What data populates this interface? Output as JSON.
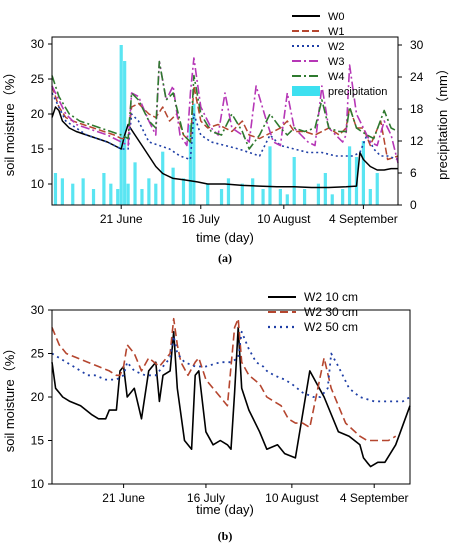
{
  "chart_data": [
    {
      "type": "line",
      "panel_label": "(a)",
      "xlabel": "time (day)",
      "ylabel": "soil moisture（%）",
      "y2label": "precipitation（mm）",
      "xlim": [
        0,
        100
      ],
      "ylim": [
        7,
        31
      ],
      "y2lim": [
        0,
        31.5
      ],
      "yticks": [
        "10",
        "15",
        "20",
        "25",
        "30"
      ],
      "y2ticks": [
        "0",
        "6",
        "12",
        "18",
        "24",
        "30"
      ],
      "xtick_labels": [
        {
          "label": "21 June",
          "x": 20
        },
        {
          "label": "16 July",
          "x": 43
        },
        {
          "label": "10 August",
          "x": 67
        },
        {
          "label": "4 September",
          "x": 90
        }
      ],
      "legend_position": "top-right",
      "series": [
        {
          "name": "W0",
          "color": "#000000",
          "dash": "",
          "width": 1.5,
          "x": [
            0,
            1,
            2,
            3,
            5,
            7,
            10,
            13,
            16,
            18,
            20,
            21,
            22,
            24,
            26,
            28,
            30,
            32,
            35,
            38,
            42,
            45,
            50,
            55,
            60,
            65,
            70,
            75,
            80,
            85,
            88,
            89,
            90,
            92,
            94,
            96,
            98,
            100
          ],
          "y": [
            19.5,
            21.0,
            20.5,
            19.0,
            18.0,
            17.5,
            17.0,
            16.5,
            16.0,
            15.5,
            15.0,
            17.0,
            18.5,
            17.0,
            15.5,
            14.0,
            12.5,
            11.5,
            10.8,
            10.6,
            10.3,
            10.0,
            10.0,
            9.8,
            9.7,
            9.6,
            9.6,
            9.5,
            9.5,
            9.6,
            9.7,
            14.5,
            13.5,
            12.5,
            12.0,
            12.0,
            12.2,
            12.2
          ]
        },
        {
          "name": "W1",
          "color": "#b5462f",
          "dash": "7 3",
          "width": 1.5,
          "x": [
            0,
            2,
            4,
            6,
            9,
            12,
            15,
            18,
            20,
            22,
            23,
            25,
            28,
            30,
            32,
            34,
            36,
            38,
            40,
            41,
            43,
            45,
            48,
            52,
            55,
            57,
            60,
            62,
            66,
            68,
            70,
            73,
            76,
            80,
            83,
            85,
            86,
            88,
            90,
            92,
            95,
            97,
            100
          ],
          "y": [
            24,
            21,
            19.5,
            19,
            18.5,
            18,
            17.5,
            17,
            16.5,
            16.5,
            21,
            21.5,
            20,
            19.5,
            21,
            19,
            20,
            17,
            16,
            24,
            19,
            18,
            18.5,
            17.5,
            19,
            17,
            16.5,
            17,
            18,
            19,
            17.5,
            17.5,
            17,
            18,
            17,
            18,
            21,
            18,
            18,
            15.5,
            19,
            13.5,
            14
          ]
        },
        {
          "name": "W2",
          "color": "#1f3fa6",
          "dash": "2 3",
          "width": 1.6,
          "x": [
            0,
            2,
            4,
            7,
            10,
            13,
            16,
            18,
            20,
            22,
            23,
            25,
            28,
            31,
            34,
            37,
            40,
            41,
            43,
            46,
            50,
            54,
            57,
            60,
            63,
            66,
            70,
            74,
            78,
            82,
            85,
            87,
            89,
            91,
            93,
            95,
            97,
            100
          ],
          "y": [
            23,
            21,
            19,
            18,
            17,
            16.5,
            16,
            15.5,
            15,
            15,
            20,
            19,
            16,
            15.5,
            15,
            14,
            13.5,
            20,
            17,
            16,
            15.5,
            15,
            14.5,
            14,
            17,
            15.5,
            15,
            14.5,
            14.5,
            14,
            14,
            14,
            14.5,
            17,
            15,
            14,
            14,
            13.5
          ]
        },
        {
          "name": "W3",
          "color": "#b637b6",
          "dash": "9 3 2 3",
          "width": 1.6,
          "x": [
            0,
            2,
            4,
            7,
            10,
            13,
            16,
            18,
            20,
            22,
            23,
            25,
            28,
            30,
            31,
            33,
            35,
            37,
            39,
            40,
            41,
            43,
            46,
            48,
            50,
            52,
            55,
            57,
            59,
            62,
            64,
            66,
            68,
            70,
            72,
            74,
            76,
            78,
            80,
            82,
            84,
            85,
            86,
            88,
            90,
            92,
            94,
            96,
            98,
            100
          ],
          "y": [
            24,
            22,
            20,
            18.5,
            18,
            17.5,
            17,
            16.5,
            16,
            15.5,
            23,
            22.5,
            19,
            17,
            27.5,
            22,
            24,
            17,
            15.5,
            23,
            28,
            21,
            18,
            17,
            23,
            18,
            17,
            16,
            24,
            19,
            16,
            15.5,
            23,
            18,
            17,
            16,
            15.5,
            24,
            18,
            17,
            16,
            17,
            27,
            20,
            18,
            16,
            15.5,
            19,
            17,
            13
          ]
        },
        {
          "name": "W4",
          "color": "#2f7a2f",
          "dash": "9 3 2 3",
          "width": 1.6,
          "x": [
            0,
            2,
            5,
            8,
            11,
            14,
            17,
            20,
            22,
            23,
            25,
            28,
            30,
            31,
            33,
            35,
            38,
            40,
            41,
            43,
            46,
            49,
            52,
            55,
            57,
            60,
            63,
            66,
            68,
            70,
            73,
            76,
            78,
            80,
            83,
            85,
            86,
            88,
            91,
            93,
            96,
            98,
            100
          ],
          "y": [
            25.5,
            22.5,
            20,
            19,
            18.5,
            18,
            17.5,
            17,
            16.5,
            23,
            22,
            19,
            18,
            27.5,
            22,
            23,
            17,
            16,
            25.5,
            20,
            17.5,
            17,
            20,
            17.5,
            15,
            17,
            20,
            18,
            17,
            18,
            17.5,
            18,
            22,
            18,
            17.5,
            17.5,
            21,
            18,
            17,
            16.5,
            20.5,
            18,
            17.5
          ]
        }
      ],
      "precipitation": {
        "name": "precipitation",
        "color": "#3de0f0",
        "x": [
          1,
          3,
          6,
          9,
          12,
          15,
          17,
          19,
          20,
          21,
          22,
          24,
          26,
          28,
          30,
          32,
          35,
          38,
          40,
          41,
          45,
          49,
          51,
          55,
          58,
          61,
          63,
          66,
          68,
          70,
          73,
          77,
          79,
          81,
          84,
          86,
          88,
          90,
          92,
          94
        ],
        "values": [
          6,
          5,
          4,
          5,
          3,
          6,
          4,
          3,
          30,
          27,
          4,
          8,
          3,
          5,
          4,
          10,
          7,
          5,
          15,
          19,
          4,
          3,
          5,
          4,
          5,
          3,
          11,
          3,
          2,
          9,
          3,
          4,
          6,
          2,
          3,
          11,
          9,
          12,
          3,
          6
        ]
      },
      "legend_entries": [
        "W0",
        "W1",
        "W2",
        "W3",
        "W4",
        "precipitation"
      ],
      "note_lines": []
    },
    {
      "type": "line",
      "panel_label": "(b)",
      "xlabel": "time (day)",
      "ylabel": "soil moisture（%）",
      "xlim": [
        0,
        100
      ],
      "ylim": [
        10,
        30
      ],
      "yticks": [
        "10",
        "15",
        "20",
        "25",
        "30"
      ],
      "xtick_labels": [
        {
          "label": "21 June",
          "x": 20
        },
        {
          "label": "16 July",
          "x": 43
        },
        {
          "label": "10 August",
          "x": 67
        },
        {
          "label": "4 September",
          "x": 90
        }
      ],
      "legend_position": "top-right",
      "series": [
        {
          "name": "W2 10 cm",
          "color": "#000000",
          "dash": "",
          "width": 1.6,
          "x": [
            0,
            1,
            2,
            3,
            5,
            8,
            11,
            13,
            15,
            16,
            18,
            19,
            20,
            21,
            23,
            25,
            27,
            29,
            30,
            31,
            33,
            34,
            35,
            36,
            37,
            39,
            40,
            41,
            43,
            45,
            47,
            49,
            50,
            51,
            52,
            53,
            55,
            58,
            60,
            63,
            65,
            68,
            72,
            76,
            80,
            83,
            86,
            87,
            88,
            89,
            91,
            93,
            96,
            100
          ],
          "y": [
            24,
            21,
            20.5,
            20,
            19.5,
            19,
            18,
            17.5,
            17.5,
            18.5,
            18.5,
            23,
            23.5,
            20,
            21,
            17.5,
            23,
            24,
            19.5,
            22.5,
            23,
            27.5,
            21,
            18,
            15,
            14,
            22.5,
            23,
            16,
            14.5,
            15,
            14.5,
            14,
            20.5,
            28,
            21,
            18.5,
            16,
            14,
            14.5,
            13.5,
            13,
            23,
            20,
            16,
            15.5,
            14.5,
            13,
            12.5,
            12,
            12.5,
            12.5,
            14.5,
            19
          ]
        },
        {
          "name": "W2 30 cm",
          "color": "#b5462f",
          "dash": "8 4",
          "width": 1.6,
          "x": [
            0,
            2,
            4,
            7,
            10,
            13,
            16,
            18,
            19,
            20,
            21,
            23,
            25,
            27,
            30,
            33,
            34,
            35,
            36,
            38,
            40,
            41,
            43,
            45,
            47,
            49,
            51,
            52,
            53,
            55,
            58,
            60,
            62,
            64,
            66,
            68,
            70,
            72,
            76,
            78,
            80,
            82,
            86,
            88,
            90,
            92,
            94,
            96
          ],
          "y": [
            28,
            26,
            25,
            24.5,
            24,
            23.5,
            23,
            22.5,
            22.5,
            23.5,
            26,
            25,
            23,
            24.5,
            23.5,
            25,
            29,
            26,
            24,
            22.5,
            24,
            24.5,
            22,
            21,
            20,
            19,
            28,
            29,
            24,
            22.5,
            21.5,
            20,
            19.5,
            19,
            17.5,
            17,
            17,
            16.5,
            24.5,
            21,
            19,
            17,
            15.5,
            15,
            15,
            15,
            15,
            15.5
          ]
        },
        {
          "name": "W2 50 cm",
          "color": "#1f3fa6",
          "dash": "2 4",
          "width": 1.8,
          "x": [
            0,
            2,
            4,
            6,
            8,
            10,
            12,
            15,
            18,
            20,
            21,
            23,
            26,
            29,
            31,
            33,
            34,
            35,
            37,
            40,
            43,
            47,
            50,
            52,
            53,
            55,
            57,
            59,
            60,
            62,
            65,
            67,
            70,
            73,
            75,
            77,
            78,
            80,
            83,
            86,
            90,
            94,
            98,
            100
          ],
          "y": [
            25,
            24.5,
            24,
            23.5,
            23,
            22.5,
            22.5,
            22,
            22,
            22.5,
            24,
            23,
            22.5,
            22.5,
            23.5,
            24.5,
            27,
            25,
            24,
            23.5,
            23.5,
            24,
            24,
            24.5,
            27.5,
            25.5,
            24,
            23.5,
            23,
            22.5,
            22,
            21.5,
            20.5,
            20,
            20,
            21,
            25,
            23.5,
            21,
            20,
            19.5,
            19.5,
            19.5,
            20
          ]
        }
      ],
      "legend_entries": [
        "W2 10 cm",
        "W2 30 cm",
        "W2 50 cm"
      ]
    }
  ]
}
